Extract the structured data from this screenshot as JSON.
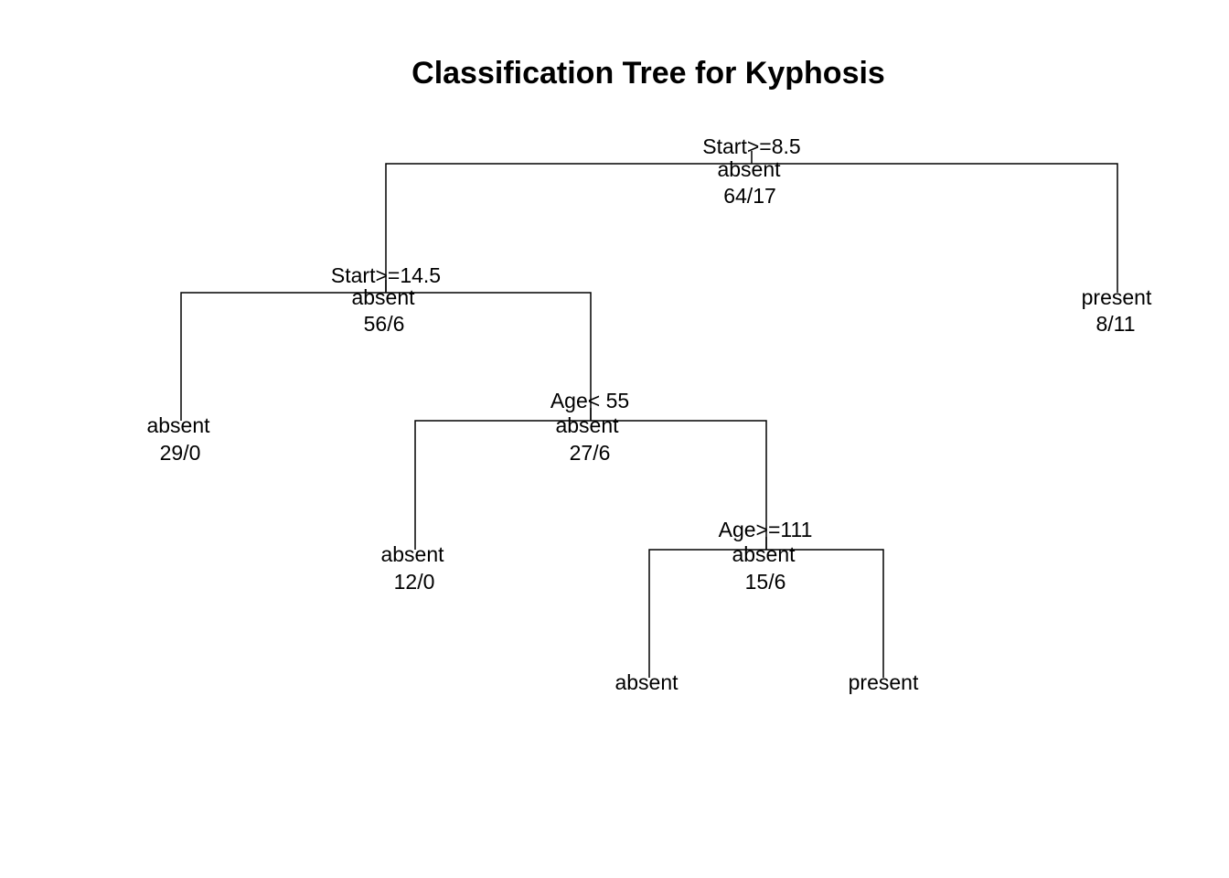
{
  "title": "Classification Tree for Kyphosis",
  "colors": {
    "line": "#000000",
    "text": "#000000",
    "background": "#ffffff"
  },
  "nodes": {
    "root": {
      "split": "Start>=8.5",
      "class": "absent",
      "counts": "64/17"
    },
    "n2": {
      "split": "Start>=14.5",
      "class": "absent",
      "counts": "56/6"
    },
    "n3": {
      "class": "present",
      "counts": "8/11"
    },
    "n4": {
      "class": "absent",
      "counts": "29/0"
    },
    "n5": {
      "split": "Age< 55",
      "class": "absent",
      "counts": "27/6"
    },
    "n10": {
      "class": "absent",
      "counts": "12/0"
    },
    "n11": {
      "split": "Age>=111",
      "class": "absent",
      "counts": "15/6"
    },
    "n22": {
      "class": "absent"
    },
    "n23": {
      "class": "present"
    }
  }
}
